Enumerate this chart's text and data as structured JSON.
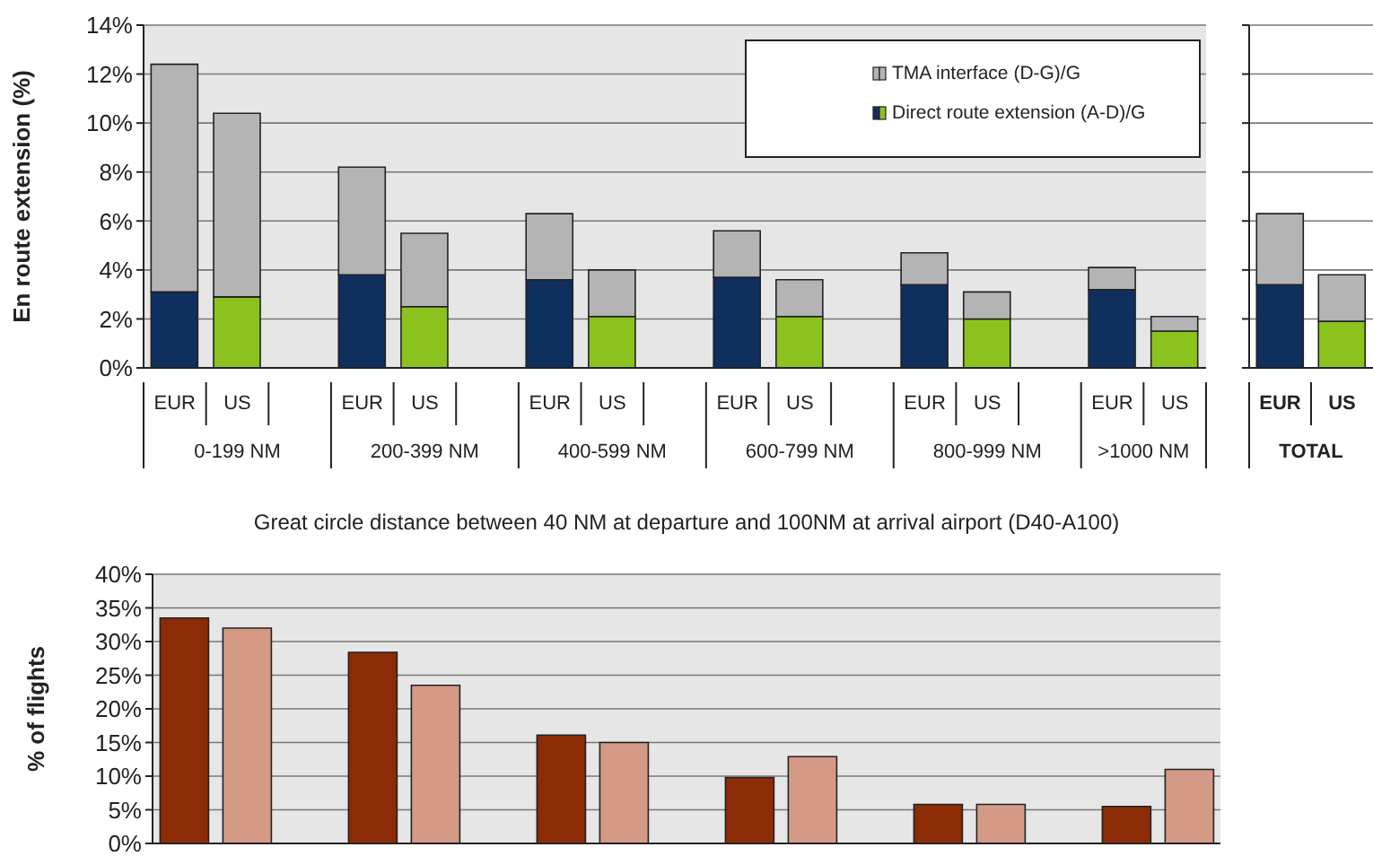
{
  "chart_data": [
    {
      "type": "bar",
      "ylabel": "En route extension (%)",
      "stacked": true,
      "grid": "y",
      "legend": "top right",
      "categories": [
        "EUR",
        "US",
        null,
        "EUR",
        "US",
        null,
        "EUR",
        "US",
        null,
        "EUR",
        "US",
        null,
        "EUR",
        "US",
        null,
        "EUR",
        "US"
      ],
      "annotations": [
        "0-199 NM",
        "200-399 NM",
        "400-599 NM",
        "600-799 NM",
        "800-999 NM",
        ">1000 NM"
      ],
      "series": [
        {
          "name": "Direct route extension (A-D)/G",
          "colors": [
            "#0f2f5f",
            "#8cc21e",
            null,
            "#0f2f5f",
            "#8cc21e",
            null,
            "#0f2f5f",
            "#8cc21e",
            null,
            "#0f2f5f",
            "#8cc21e",
            null,
            "#0f2f5f",
            "#8cc21e",
            null,
            "#0f2f5f",
            "#8cc21e"
          ],
          "values": [
            3.1,
            2.9,
            null,
            3.8,
            2.5,
            null,
            3.6,
            2.1,
            null,
            3.7,
            2.1,
            null,
            3.4,
            2.0,
            null,
            3.2,
            1.5
          ]
        },
        {
          "name": "TMA interface (D-G)/G",
          "color": "#b4b4b4",
          "values": [
            9.3,
            7.5,
            null,
            4.4,
            3.0,
            null,
            2.7,
            1.9,
            null,
            1.9,
            1.5,
            null,
            1.3,
            1.1,
            null,
            0.9,
            0.6
          ]
        }
      ],
      "ylim": [
        0,
        14
      ],
      "yticks": [
        {
          "value": 0,
          "label": "0%"
        },
        {
          "value": 2,
          "label": "2%"
        },
        {
          "value": 4,
          "label": "4%"
        },
        {
          "value": 6,
          "label": "6%"
        },
        {
          "value": 8,
          "label": "8%"
        },
        {
          "value": 10,
          "label": "10%"
        },
        {
          "value": 12,
          "label": "12%"
        },
        {
          "value": 14,
          "label": "14%"
        }
      ]
    },
    {
      "type": "bar",
      "xlabel": "TOTAL",
      "stacked": true,
      "grid": "y",
      "tick_labels": "x",
      "categories": [
        "EUR",
        "US"
      ],
      "series": [
        {
          "colors": [
            "#0f2f5f",
            "#8cc21e"
          ],
          "values": [
            3.4,
            1.9
          ]
        },
        {
          "color": "#b4b4b4",
          "values": [
            2.9,
            1.9
          ]
        }
      ],
      "ylim": [
        0,
        14
      ],
      "yticks": [
        0,
        2,
        4,
        6,
        8,
        10,
        12,
        14
      ]
    },
    {
      "type": "bar",
      "title": "Great circle distance between 40 NM at departure and 100NM at arrival airport (D40-A100)",
      "ylabel": "% of flights",
      "grid": "y",
      "categories": [
        null,
        null,
        null,
        null,
        null,
        null,
        null,
        null,
        null,
        null,
        null,
        null,
        null,
        null,
        null,
        null,
        null
      ],
      "series": [
        {
          "colors": [
            "#8b2c06",
            "#d49a86",
            null,
            "#8b2c06",
            "#d49a86",
            null,
            "#8b2c06",
            "#d49a86",
            null,
            "#8b2c06",
            "#d49a86",
            null,
            "#8b2c06",
            "#d49a86",
            null,
            "#8b2c06",
            "#d49a86"
          ],
          "values": [
            33.5,
            32.0,
            null,
            28.4,
            23.5,
            null,
            16.1,
            15.0,
            null,
            9.8,
            12.9,
            null,
            5.8,
            5.8,
            null,
            5.5,
            11.0
          ]
        }
      ],
      "ylim": [
        0,
        40
      ],
      "yticks": [
        {
          "value": 0,
          "label": "0%"
        },
        {
          "value": 5,
          "label": "5%"
        },
        {
          "value": 10,
          "label": "10%"
        },
        {
          "value": 15,
          "label": "15%"
        },
        {
          "value": 20,
          "label": "20%"
        },
        {
          "value": 25,
          "label": "25%"
        },
        {
          "value": 30,
          "label": "30%"
        },
        {
          "value": 35,
          "label": "35%"
        },
        {
          "value": 40,
          "label": "40%"
        }
      ]
    }
  ]
}
